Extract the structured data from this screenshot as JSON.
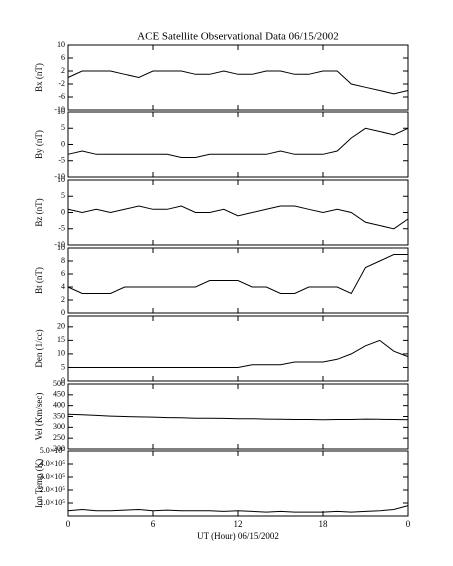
{
  "chart_data": [
    {
      "type": "line",
      "title": "ACE Satellite Observational Data   06/15/2002",
      "ylabel": "Bx (nT)",
      "x": [
        0,
        1,
        2,
        3,
        4,
        5,
        6,
        7,
        8,
        9,
        10,
        11,
        12,
        13,
        14,
        15,
        16,
        17,
        18,
        19,
        20,
        21,
        22,
        23,
        24
      ],
      "series": [
        {
          "color": "#000000",
          "values": [
            0,
            2,
            2,
            2,
            1,
            0,
            2,
            2,
            2,
            1,
            1,
            2,
            1,
            1,
            2,
            2,
            1,
            1,
            2,
            2,
            -2,
            -3,
            -4,
            -5,
            -4
          ]
        }
      ],
      "xlim": [
        0,
        24
      ],
      "xticks": [
        0,
        6,
        12,
        18,
        {
          "value": 24,
          "label": "0"
        }
      ],
      "ylim": [
        -10,
        10
      ],
      "yticks": [
        -10,
        -6,
        -2,
        2,
        6,
        10
      ]
    },
    {
      "type": "line",
      "ylabel": "By (nT)",
      "x": [
        0,
        1,
        2,
        3,
        4,
        5,
        6,
        7,
        8,
        9,
        10,
        11,
        12,
        13,
        14,
        15,
        16,
        17,
        18,
        19,
        20,
        21,
        22,
        23,
        24
      ],
      "series": [
        {
          "color": "#000000",
          "values": [
            -3,
            -2,
            -3,
            -3,
            -3,
            -3,
            -3,
            -3,
            -4,
            -4,
            -3,
            -3,
            -3,
            -3,
            -3,
            -2,
            -3,
            -3,
            -3,
            -2,
            2,
            5,
            4,
            3,
            5
          ]
        }
      ],
      "xlim": [
        0,
        24
      ],
      "xticks": [
        0,
        6,
        12,
        18,
        {
          "value": 24,
          "label": "0"
        }
      ],
      "ylim": [
        -10,
        10
      ],
      "yticks": [
        -10,
        -5,
        0,
        5,
        10
      ]
    },
    {
      "type": "line",
      "ylabel": "Bz (nT)",
      "x": [
        0,
        1,
        2,
        3,
        4,
        5,
        6,
        7,
        8,
        9,
        10,
        11,
        12,
        13,
        14,
        15,
        16,
        17,
        18,
        19,
        20,
        21,
        22,
        23,
        24
      ],
      "series": [
        {
          "color": "#000000",
          "values": [
            1,
            0,
            1,
            0,
            1,
            2,
            1,
            1,
            2,
            0,
            0,
            1,
            -1,
            0,
            1,
            2,
            2,
            1,
            0,
            1,
            0,
            -3,
            -4,
            -5,
            -2
          ]
        }
      ],
      "xlim": [
        0,
        24
      ],
      "xticks": [
        0,
        6,
        12,
        18,
        {
          "value": 24,
          "label": "0"
        }
      ],
      "ylim": [
        -10,
        10
      ],
      "yticks": [
        -10,
        -5,
        0,
        5,
        10
      ]
    },
    {
      "type": "line",
      "ylabel": "Bt (nT)",
      "x": [
        0,
        1,
        2,
        3,
        4,
        5,
        6,
        7,
        8,
        9,
        10,
        11,
        12,
        13,
        14,
        15,
        16,
        17,
        18,
        19,
        20,
        21,
        22,
        23,
        24
      ],
      "series": [
        {
          "color": "#000000",
          "values": [
            4,
            3,
            3,
            3,
            4,
            4,
            4,
            4,
            4,
            4,
            5,
            5,
            5,
            4,
            4,
            3,
            3,
            4,
            4,
            4,
            3,
            7,
            8,
            9,
            9
          ]
        }
      ],
      "xlim": [
        0,
        24
      ],
      "xticks": [
        0,
        6,
        12,
        18,
        {
          "value": 24,
          "label": "0"
        }
      ],
      "ylim": [
        0,
        10
      ],
      "yticks": [
        0,
        2,
        4,
        6,
        8,
        10
      ]
    },
    {
      "type": "line",
      "ylabel": "Den (1/cc)",
      "x": [
        0,
        1,
        2,
        3,
        4,
        5,
        6,
        7,
        8,
        9,
        10,
        11,
        12,
        13,
        14,
        15,
        16,
        17,
        18,
        19,
        20,
        21,
        22,
        23,
        24
      ],
      "series": [
        {
          "color": "#000000",
          "values": [
            5,
            5,
            5,
            5,
            5,
            5,
            5,
            5,
            5,
            5,
            5,
            5,
            5,
            6,
            6,
            6,
            7,
            7,
            7,
            8,
            10,
            13,
            15,
            11,
            9
          ]
        }
      ],
      "xlim": [
        0,
        24
      ],
      "xticks": [
        0,
        6,
        12,
        18,
        {
          "value": 24,
          "label": "0"
        }
      ],
      "ylim": [
        0,
        24
      ],
      "yticks": [
        0,
        5,
        10,
        15,
        20
      ]
    },
    {
      "type": "line",
      "ylabel": "Vel (Km/sec)",
      "x": [
        0,
        1,
        2,
        3,
        4,
        5,
        6,
        7,
        8,
        9,
        10,
        11,
        12,
        13,
        14,
        15,
        16,
        17,
        18,
        19,
        20,
        21,
        22,
        23,
        24
      ],
      "series": [
        {
          "color": "#000000",
          "values": [
            360,
            358,
            355,
            352,
            350,
            348,
            347,
            345,
            344,
            342,
            342,
            341,
            340,
            340,
            338,
            337,
            336,
            336,
            335,
            336,
            336,
            338,
            337,
            336,
            335
          ]
        }
      ],
      "xlim": [
        0,
        24
      ],
      "xticks": [
        0,
        6,
        12,
        18,
        {
          "value": 24,
          "label": "0"
        }
      ],
      "ylim": [
        200,
        500
      ],
      "yticks": [
        200,
        250,
        300,
        350,
        400,
        450,
        500
      ]
    },
    {
      "type": "line",
      "ylabel": "Ion Temp (K)",
      "xlabel": "UT (Hour)  06/15/2002",
      "x": [
        0,
        1,
        2,
        3,
        4,
        5,
        6,
        7,
        8,
        9,
        10,
        11,
        12,
        13,
        14,
        15,
        16,
        17,
        18,
        19,
        20,
        21,
        22,
        23,
        24
      ],
      "series": [
        {
          "color": "#000000",
          "values": [
            40000,
            50000,
            40000,
            40000,
            45000,
            50000,
            40000,
            45000,
            40000,
            40000,
            40000,
            35000,
            40000,
            35000,
            30000,
            35000,
            30000,
            30000,
            30000,
            35000,
            30000,
            35000,
            40000,
            50000,
            80000
          ]
        }
      ],
      "xlim": [
        0,
        24
      ],
      "xticks": [
        0,
        6,
        12,
        18,
        {
          "value": 24,
          "label": "0"
        }
      ],
      "ylim": [
        0,
        500000
      ],
      "yticks": [
        {
          "value": 100000,
          "label": "1.0×10⁵"
        },
        {
          "value": 200000,
          "label": "2.0×10⁵"
        },
        {
          "value": 300000,
          "label": "3.0×10⁵"
        },
        {
          "value": 400000,
          "label": "4.0×10⁵"
        },
        {
          "value": 500000,
          "label": "5.0×10⁵"
        }
      ]
    }
  ]
}
